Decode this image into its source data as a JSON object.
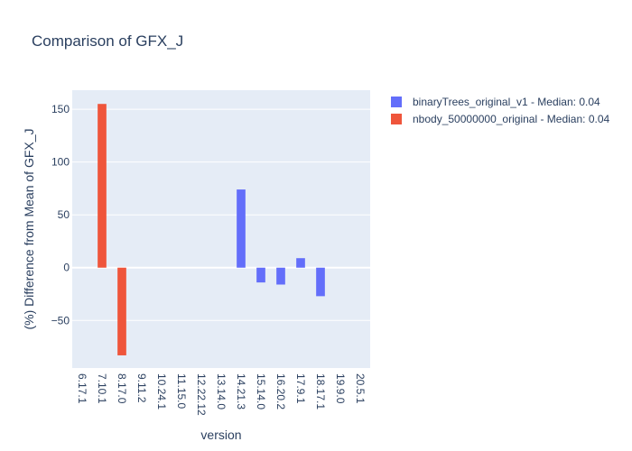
{
  "chart_data": {
    "type": "bar",
    "title": "Comparison of GFX_J",
    "xlabel": "version",
    "ylabel": "(%) Difference from Mean of GFX_J",
    "categories": [
      "6.17.1",
      "7.10.1",
      "8.17.0",
      "9.11.2",
      "10.24.1",
      "11.15.0",
      "12.22.12",
      "13.14.0",
      "14.21.3",
      "15.14.0",
      "16.20.2",
      "17.9.1",
      "18.17.1",
      "19.9.0",
      "20.5.1"
    ],
    "ylim": [
      -95,
      168
    ],
    "yticks": [
      -50,
      0,
      50,
      100,
      150
    ],
    "ytick_labels": [
      "−50",
      "0",
      "50",
      "100",
      "150"
    ],
    "grid": true,
    "legend_position": "top-right",
    "series": [
      {
        "name": "binaryTrees_original_v1 - Median: 0.04",
        "color": "#636efa",
        "values": [
          0,
          0,
          0,
          0,
          0,
          0,
          0,
          0,
          74,
          -14,
          -16,
          9,
          -27,
          0,
          0
        ]
      },
      {
        "name": "nbody_50000000_original - Median: 0.04",
        "color": "#ef553b",
        "values": [
          0,
          155,
          -83,
          0,
          0,
          0,
          0,
          0,
          0,
          0,
          0,
          0,
          0,
          0,
          0
        ]
      }
    ]
  }
}
